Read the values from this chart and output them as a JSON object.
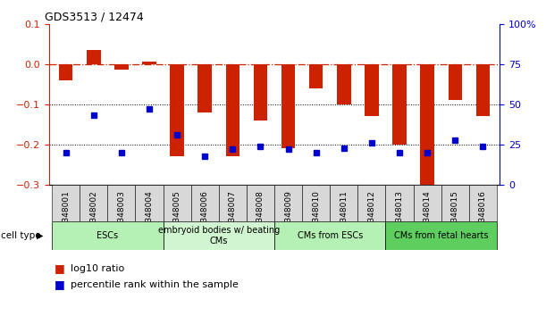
{
  "title": "GDS3513 / 12474",
  "samples": [
    "GSM348001",
    "GSM348002",
    "GSM348003",
    "GSM348004",
    "GSM348005",
    "GSM348006",
    "GSM348007",
    "GSM348008",
    "GSM348009",
    "GSM348010",
    "GSM348011",
    "GSM348012",
    "GSM348013",
    "GSM348014",
    "GSM348015",
    "GSM348016"
  ],
  "log10_ratio": [
    -0.04,
    0.035,
    -0.015,
    0.005,
    -0.23,
    -0.12,
    -0.23,
    -0.14,
    -0.21,
    -0.06,
    -0.1,
    -0.13,
    -0.2,
    -0.3,
    -0.09,
    -0.13
  ],
  "percentile_rank": [
    20,
    43,
    20,
    47,
    31,
    18,
    22,
    24,
    22,
    20,
    23,
    26,
    20,
    20,
    28,
    24
  ],
  "cell_type_groups": [
    {
      "label": "ESCs",
      "start": 0,
      "end": 3,
      "color": "#b5f0b5"
    },
    {
      "label": "embryoid bodies w/ beating\nCMs",
      "start": 4,
      "end": 7,
      "color": "#d0f5d0"
    },
    {
      "label": "CMs from ESCs",
      "start": 8,
      "end": 11,
      "color": "#b5f0b5"
    },
    {
      "label": "CMs from fetal hearts",
      "start": 12,
      "end": 15,
      "color": "#5ecf5e"
    }
  ],
  "bar_color": "#cc2200",
  "dot_color": "#0000cc",
  "ylim_left": [
    -0.3,
    0.1
  ],
  "ylim_right": [
    0,
    100
  ],
  "hline_y": 0,
  "dotted_lines": [
    -0.1,
    -0.2
  ],
  "left_ticks": [
    -0.3,
    -0.2,
    -0.1,
    0,
    0.1
  ],
  "right_ticks": [
    0,
    25,
    50,
    75,
    100
  ],
  "right_tick_labels": [
    "0",
    "25",
    "50",
    "75",
    "100%"
  ],
  "legend_items": [
    {
      "color": "#cc2200",
      "label": "log10 ratio"
    },
    {
      "color": "#0000cc",
      "label": "percentile rank within the sample"
    }
  ]
}
